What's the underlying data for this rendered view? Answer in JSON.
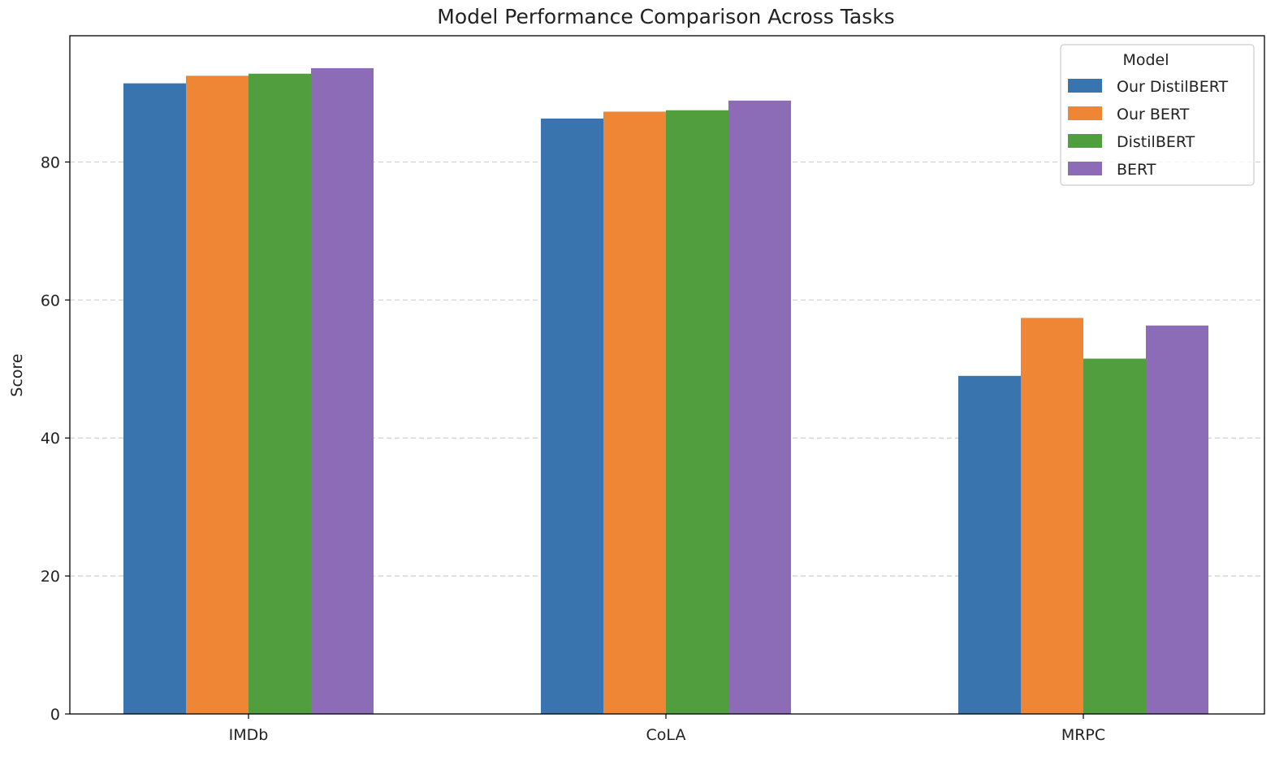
{
  "chart_data": {
    "type": "bar",
    "title": "Model Performance Comparison Across Tasks",
    "xlabel": "",
    "ylabel": "Score",
    "categories": [
      "IMDb",
      "CoLA",
      "MRPC"
    ],
    "ylim": [
      0,
      98.3
    ],
    "yticks": [
      0,
      20,
      40,
      60,
      80
    ],
    "grid": "y-dashed",
    "legend": {
      "title": "Model",
      "placement": "top-right"
    },
    "series": [
      {
        "name": "Our DistilBERT",
        "color": "#3a74ae",
        "values": [
          91.4,
          86.3,
          49.0
        ]
      },
      {
        "name": "Our BERT",
        "color": "#ef8636",
        "values": [
          92.5,
          87.3,
          57.4
        ]
      },
      {
        "name": "DistilBERT",
        "color": "#519e3e",
        "values": [
          92.8,
          87.5,
          51.5
        ]
      },
      {
        "name": "BERT",
        "color": "#8c6bb7",
        "values": [
          93.6,
          88.9,
          56.3
        ]
      }
    ]
  }
}
